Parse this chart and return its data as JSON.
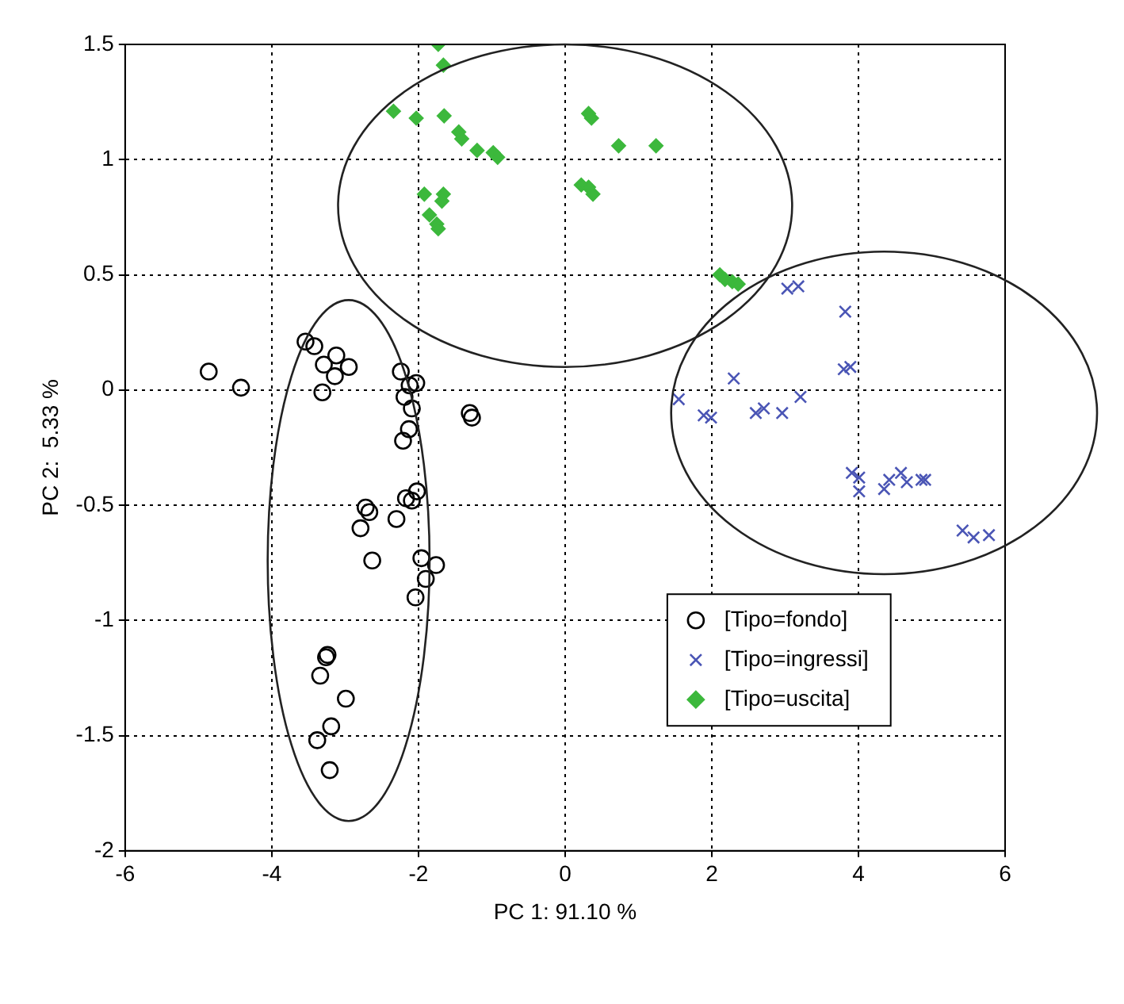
{
  "chart_data": {
    "type": "scatter",
    "xlabel": "PC 1: 91.10 %",
    "ylabel": "PC 2:  5.33 %",
    "xlim": [
      -6,
      6
    ],
    "xticks": [
      -6,
      -4,
      -2,
      0,
      2,
      4,
      6
    ],
    "ylim": [
      -2,
      1.5
    ],
    "yticks": [
      -2,
      -1.5,
      -1,
      -0.5,
      0,
      0.5,
      1,
      1.5
    ],
    "grid": true,
    "legend": "bottom right",
    "series": [
      {
        "name": "[Tipo=fondo]",
        "color": "#000000",
        "marker": "circle",
        "x": [
          -4.86,
          -4.42,
          -3.54,
          -3.42,
          -3.29,
          -3.12,
          -2.95,
          -3.14,
          -3.31,
          -2.24,
          -2.19,
          -2.12,
          -2.03,
          -2.09,
          -2.13,
          -2.21,
          -1.3,
          -1.27,
          -2.72,
          -2.67,
          -2.79,
          -2.63,
          -2.3,
          -2.17,
          -2.02,
          -2.09,
          -1.96,
          -1.76,
          -1.9,
          -2.04,
          -3.24,
          -3.26,
          -3.34,
          -2.99,
          -3.19,
          -3.38,
          -3.21
        ],
        "values": [
          0.08,
          0.01,
          0.21,
          0.19,
          0.11,
          0.15,
          0.1,
          0.06,
          -0.01,
          0.08,
          -0.03,
          0.02,
          0.03,
          -0.08,
          -0.17,
          -0.22,
          -0.1,
          -0.12,
          -0.51,
          -0.53,
          -0.6,
          -0.74,
          -0.56,
          -0.47,
          -0.44,
          -0.48,
          -0.73,
          -0.76,
          -0.82,
          -0.9,
          -1.15,
          -1.16,
          -1.24,
          -1.34,
          -1.46,
          -1.52,
          -1.65
        ]
      },
      {
        "name": "[Tipo=ingressi]",
        "color": "#4a55b5",
        "marker": "cross",
        "x": [
          3.03,
          3.18,
          3.82,
          3.8,
          3.89,
          1.55,
          1.89,
          1.99,
          2.3,
          2.6,
          2.71,
          2.96,
          3.21,
          3.91,
          4.01,
          4.01,
          4.35,
          4.42,
          4.58,
          4.66,
          4.86,
          4.91,
          5.42,
          5.57,
          5.78
        ],
        "values": [
          0.44,
          0.45,
          0.34,
          0.09,
          0.1,
          -0.04,
          -0.11,
          -0.12,
          0.05,
          -0.1,
          -0.08,
          -0.1,
          -0.03,
          -0.36,
          -0.38,
          -0.44,
          -0.43,
          -0.39,
          -0.36,
          -0.4,
          -0.39,
          -0.39,
          -0.61,
          -0.64,
          -0.63
        ]
      },
      {
        "name": "[Tipo=uscita]",
        "color": "#3cb83c",
        "marker": "diamond",
        "x": [
          -1.73,
          -1.66,
          -2.34,
          -2.03,
          -1.65,
          -1.45,
          -1.41,
          -1.2,
          -0.98,
          -0.92,
          -1.92,
          -1.66,
          -1.68,
          -1.85,
          -1.75,
          -1.73,
          0.32,
          0.36,
          0.73,
          1.24,
          0.22,
          0.32,
          0.38,
          2.11,
          2.18,
          2.28,
          2.36
        ],
        "values": [
          1.5,
          1.41,
          1.21,
          1.18,
          1.19,
          1.12,
          1.09,
          1.04,
          1.03,
          1.01,
          0.85,
          0.85,
          0.82,
          0.76,
          0.72,
          0.7,
          1.2,
          1.18,
          1.06,
          1.06,
          0.89,
          0.88,
          0.85,
          0.5,
          0.48,
          0.47,
          0.46
        ]
      }
    ]
  }
}
